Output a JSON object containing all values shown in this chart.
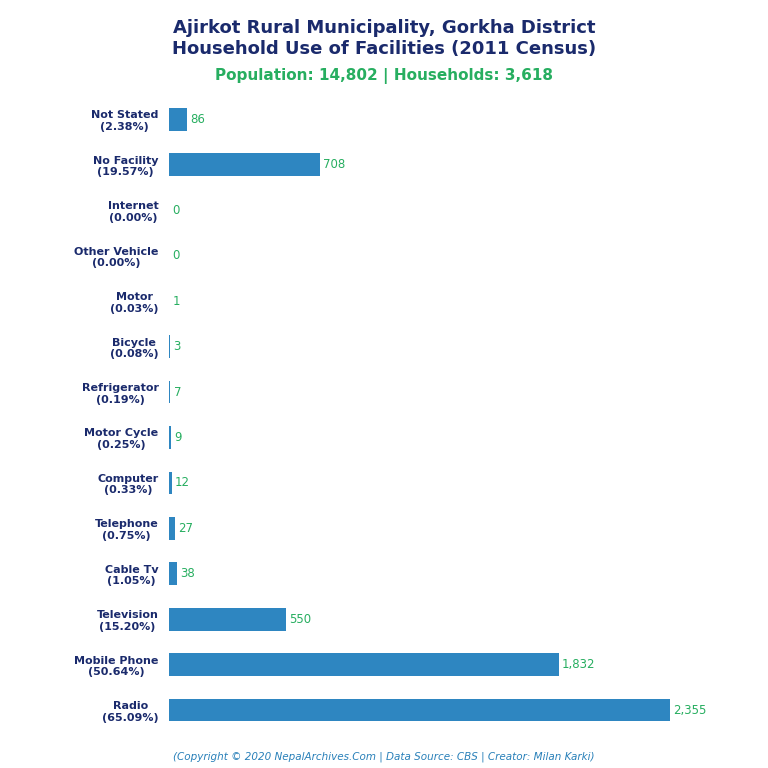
{
  "title_line1": "Ajirkot Rural Municipality, Gorkha District",
  "title_line2": "Household Use of Facilities (2011 Census)",
  "subtitle": "Population: 14,802 | Households: 3,618",
  "footer": "(Copyright © 2020 NepalArchives.Com | Data Source: CBS | Creator: Milan Karki)",
  "categories": [
    "Not Stated\n(2.38%)",
    "No Facility\n(19.57%)",
    "Internet\n(0.00%)",
    "Other Vehicle\n(0.00%)",
    "Motor\n(0.03%)",
    "Bicycle\n(0.08%)",
    "Refrigerator\n(0.19%)",
    "Motor Cycle\n(0.25%)",
    "Computer\n(0.33%)",
    "Telephone\n(0.75%)",
    "Cable Tv\n(1.05%)",
    "Television\n(15.20%)",
    "Mobile Phone\n(50.64%)",
    "Radio\n(65.09%)"
  ],
  "values": [
    86,
    708,
    0,
    0,
    1,
    3,
    7,
    9,
    12,
    27,
    38,
    550,
    1832,
    2355
  ],
  "bar_color": "#2e86c1",
  "value_color": "#27ae60",
  "title_color": "#1a2a6c",
  "subtitle_color": "#27ae60",
  "footer_color": "#2980b9",
  "background_color": "#ffffff",
  "xlim": [
    0,
    2600
  ]
}
